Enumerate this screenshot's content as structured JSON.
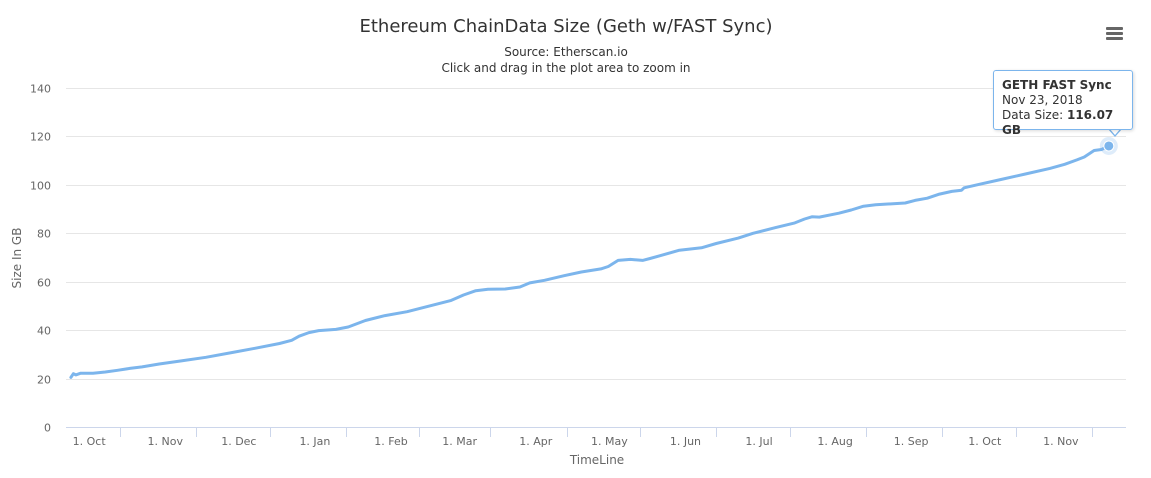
{
  "chart_data": {
    "type": "line",
    "title": "Ethereum ChainData Size (Geth w/FAST Sync)",
    "subtitle_source": "Source: Etherscan.io",
    "subtitle_hint": "Click and drag in the plot area to zoom in",
    "xlabel": "TimeLine",
    "ylabel": "Size In GB",
    "ylim": [
      0,
      140
    ],
    "yticks": [
      0,
      20,
      40,
      60,
      80,
      100,
      120,
      140
    ],
    "xlim": [
      "2017-09-24",
      "2018-11-30"
    ],
    "xtick_labels": [
      {
        "date": "2017-10-01",
        "label": "1. Oct"
      },
      {
        "date": "2017-11-01",
        "label": "1. Nov"
      },
      {
        "date": "2017-12-01",
        "label": "1. Dec"
      },
      {
        "date": "2018-01-01",
        "label": "1. Jan"
      },
      {
        "date": "2018-02-01",
        "label": "1. Feb"
      },
      {
        "date": "2018-03-01",
        "label": "1. Mar"
      },
      {
        "date": "2018-04-01",
        "label": "1. Apr"
      },
      {
        "date": "2018-05-01",
        "label": "1. May"
      },
      {
        "date": "2018-06-01",
        "label": "1. Jun"
      },
      {
        "date": "2018-07-01",
        "label": "1. Jul"
      },
      {
        "date": "2018-08-01",
        "label": "1. Aug"
      },
      {
        "date": "2018-09-01",
        "label": "1. Sep"
      },
      {
        "date": "2018-10-01",
        "label": "1. Oct"
      },
      {
        "date": "2018-11-01",
        "label": "1. Nov"
      }
    ],
    "grid": true,
    "series": [
      {
        "name": "GETH FAST Sync",
        "color": "#7cb5ec",
        "points": [
          [
            "2017-09-26",
            20.5
          ],
          [
            "2017-09-27",
            22.0
          ],
          [
            "2017-09-28",
            21.5
          ],
          [
            "2017-09-30",
            22.2
          ],
          [
            "2017-10-05",
            22.2
          ],
          [
            "2017-10-10",
            22.7
          ],
          [
            "2017-10-15",
            23.4
          ],
          [
            "2017-10-20",
            24.2
          ],
          [
            "2017-10-25",
            24.8
          ],
          [
            "2017-11-01",
            26.0
          ],
          [
            "2017-11-10",
            27.3
          ],
          [
            "2017-11-20",
            28.8
          ],
          [
            "2017-12-01",
            30.8
          ],
          [
            "2017-12-10",
            32.5
          ],
          [
            "2017-12-20",
            34.5
          ],
          [
            "2017-12-25",
            35.8
          ],
          [
            "2017-12-28",
            37.5
          ],
          [
            "2018-01-01",
            39.0
          ],
          [
            "2018-01-05",
            39.8
          ],
          [
            "2018-01-12",
            40.3
          ],
          [
            "2018-01-17",
            41.3
          ],
          [
            "2018-01-24",
            44.0
          ],
          [
            "2018-02-01",
            46.0
          ],
          [
            "2018-02-10",
            47.6
          ],
          [
            "2018-02-20",
            50.2
          ],
          [
            "2018-02-28",
            52.3
          ],
          [
            "2018-03-05",
            54.5
          ],
          [
            "2018-03-10",
            56.3
          ],
          [
            "2018-03-15",
            56.9
          ],
          [
            "2018-03-22",
            57.0
          ],
          [
            "2018-03-28",
            57.8
          ],
          [
            "2018-04-01",
            59.5
          ],
          [
            "2018-04-07",
            60.6
          ],
          [
            "2018-04-15",
            62.5
          ],
          [
            "2018-04-22",
            64.0
          ],
          [
            "2018-04-30",
            65.3
          ],
          [
            "2018-05-03",
            66.3
          ],
          [
            "2018-05-07",
            68.8
          ],
          [
            "2018-05-12",
            69.2
          ],
          [
            "2018-05-17",
            68.8
          ],
          [
            "2018-05-20",
            69.6
          ],
          [
            "2018-05-25",
            71.0
          ],
          [
            "2018-06-01",
            73.0
          ],
          [
            "2018-06-10",
            74.0
          ],
          [
            "2018-06-16",
            75.8
          ],
          [
            "2018-06-25",
            78.0
          ],
          [
            "2018-07-01",
            80.0
          ],
          [
            "2018-07-10",
            82.3
          ],
          [
            "2018-07-18",
            84.3
          ],
          [
            "2018-07-22",
            85.9
          ],
          [
            "2018-07-25",
            86.8
          ],
          [
            "2018-07-28",
            86.7
          ],
          [
            "2018-08-05",
            88.3
          ],
          [
            "2018-08-10",
            89.6
          ],
          [
            "2018-08-15",
            91.2
          ],
          [
            "2018-08-20",
            91.8
          ],
          [
            "2018-08-25",
            92.1
          ],
          [
            "2018-09-01",
            92.5
          ],
          [
            "2018-09-05",
            93.6
          ],
          [
            "2018-09-10",
            94.5
          ],
          [
            "2018-09-15",
            96.2
          ],
          [
            "2018-09-20",
            97.3
          ],
          [
            "2018-09-24",
            97.8
          ],
          [
            "2018-09-25",
            98.8
          ],
          [
            "2018-10-01",
            100.2
          ],
          [
            "2018-10-10",
            102.2
          ],
          [
            "2018-10-20",
            104.5
          ],
          [
            "2018-10-30",
            106.8
          ],
          [
            "2018-11-05",
            108.5
          ],
          [
            "2018-11-10",
            110.3
          ],
          [
            "2018-11-13",
            111.5
          ],
          [
            "2018-11-17",
            114.2
          ],
          [
            "2018-11-20",
            114.6
          ],
          [
            "2018-11-23",
            116.07
          ]
        ]
      }
    ],
    "tooltip": {
      "series": "GETH FAST Sync",
      "date_text": "Nov 23, 2018",
      "value_label": "Data Size: ",
      "value_text": "116.07 GB",
      "highlighted_point": [
        "2018-11-23",
        116.07
      ]
    }
  }
}
